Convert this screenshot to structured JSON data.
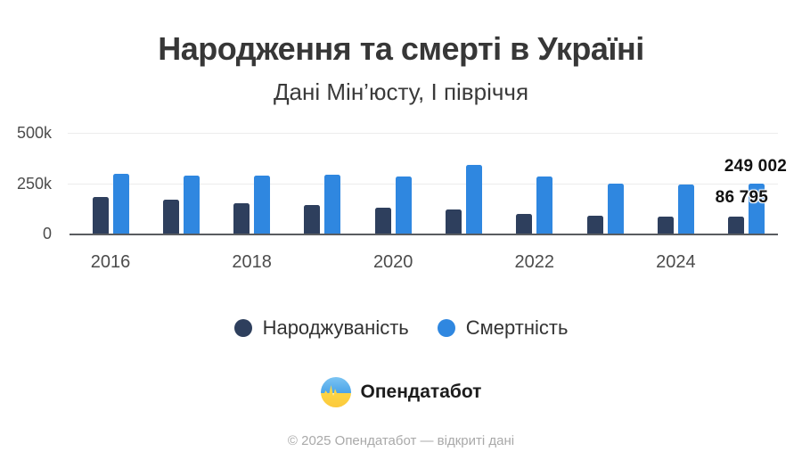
{
  "title": "Народження та смерті в Україні",
  "subtitle": "Дані Мін’юсту, І півріччя",
  "chart_data": {
    "type": "bar",
    "categories": [
      "2016",
      "2017",
      "2018",
      "2019",
      "2020",
      "2021",
      "2022",
      "2023",
      "2024",
      "2025"
    ],
    "series": [
      {
        "id": "births",
        "name": "Народжуваність",
        "color": "#2e3f5d",
        "values": [
          185000,
          172000,
          155000,
          145000,
          132000,
          125000,
          100000,
          92000,
          87000,
          86795
        ]
      },
      {
        "id": "deaths",
        "name": "Смертність",
        "color": "#2f87e0",
        "values": [
          297000,
          290000,
          289000,
          296000,
          285000,
          341000,
          285000,
          250000,
          244000,
          249002
        ]
      }
    ],
    "ylim": [
      0,
      500000
    ],
    "yticks": [
      {
        "value": 500000,
        "label": "500k"
      },
      {
        "value": 250000,
        "label": "250k"
      },
      {
        "value": 0,
        "label": "0"
      }
    ],
    "x_tick_labels": [
      "2016",
      "2018",
      "2020",
      "2022",
      "2024"
    ],
    "grid": "horizontal-light",
    "legend_position": "bottom",
    "value_labels": [
      {
        "series": "deaths",
        "category": "2025",
        "text": "249 002"
      },
      {
        "series": "births",
        "category": "2025",
        "text": "86 795"
      }
    ]
  },
  "legend": {
    "items": [
      {
        "label": "Народжуваність",
        "color": "#2e3f5d"
      },
      {
        "label": "Смертність",
        "color": "#2f87e0"
      }
    ]
  },
  "branding": {
    "logo_text": "Опендатабот",
    "logo_icon": "ukraine-pulse-icon"
  },
  "footer": "© 2025 Опендатабот — відкриті дані"
}
